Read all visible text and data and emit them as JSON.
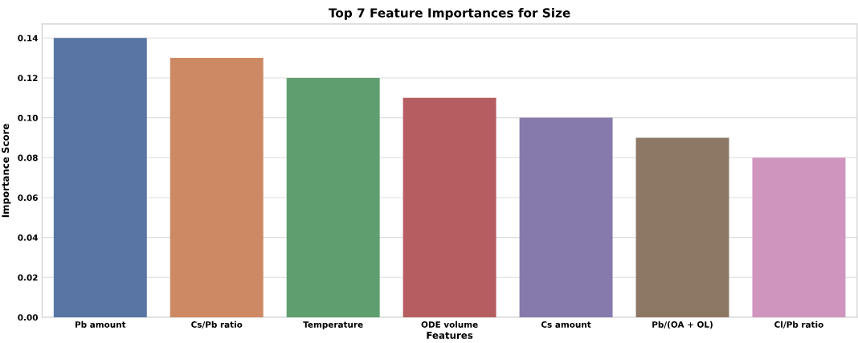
{
  "chart_data": {
    "type": "bar",
    "title": "Top 7 Feature Importances for Size",
    "xlabel": "Features",
    "ylabel": "Importance Score",
    "categories": [
      "Pb amount",
      "Cs/Pb ratio",
      "Temperature",
      "ODE volume",
      "Cs amount",
      "Pb/(OA + OL)",
      "Cl/Pb ratio"
    ],
    "values": [
      0.14,
      0.13,
      0.12,
      0.11,
      0.1,
      0.09,
      0.08
    ],
    "colors": [
      "#5975a4",
      "#cc8963",
      "#5f9e6e",
      "#b55d60",
      "#857aab",
      "#8d7866",
      "#d095bf"
    ],
    "ylim": [
      0,
      0.147
    ],
    "yticks": [
      {
        "value": 0,
        "label": "0.00"
      },
      {
        "value": 0.02,
        "label": "0.02"
      },
      {
        "value": 0.04,
        "label": "0.04"
      },
      {
        "value": 0.06,
        "label": "0.06"
      },
      {
        "value": 0.08,
        "label": "0.08"
      },
      {
        "value": 0.1,
        "label": "0.10"
      },
      {
        "value": 0.12,
        "label": "0.12"
      },
      {
        "value": 0.14,
        "label": "0.14"
      }
    ],
    "grid": "y"
  }
}
